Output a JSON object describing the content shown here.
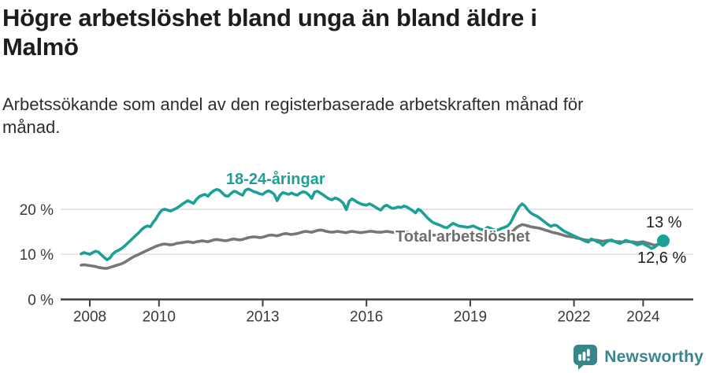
{
  "header": {
    "title_line1": "Högre arbetslöshet bland unga än bland äldre i",
    "title_line2": "Malmö",
    "subtitle_line1": "Arbetssökande som andel av den registerbaserade arbetskraften månad för",
    "subtitle_line2": "månad."
  },
  "chart_data": {
    "type": "line",
    "title": "Högre arbetslöshet bland unga än bland äldre i Malmö",
    "subtitle": "Arbetssökande som andel av den registerbaserade arbetskraften månad för månad.",
    "unit": "%",
    "x_start": 2007.75,
    "x_step_months": 1,
    "xlim": [
      2007.75,
      2025.6
    ],
    "ylim": [
      0,
      27.5
    ],
    "grid": "horizontal",
    "y_ticks": [
      {
        "value": 0,
        "label": "0 %"
      },
      {
        "value": 10,
        "label": "10 %"
      },
      {
        "value": 20,
        "label": "20 %"
      }
    ],
    "x_ticks": [
      {
        "value": 2008,
        "label": "2008"
      },
      {
        "value": 2010,
        "label": "2010"
      },
      {
        "value": 2013,
        "label": "2013"
      },
      {
        "value": 2016,
        "label": "2016"
      },
      {
        "value": 2019,
        "label": "2019"
      },
      {
        "value": 2022,
        "label": "2022"
      },
      {
        "value": 2024,
        "label": "2024"
      }
    ],
    "series": [
      {
        "name": "18-24-åringar",
        "color": "#1ba098",
        "end_dot": true,
        "end_value_label": "13 %",
        "values": [
          10.1,
          10.4,
          10.2,
          10.0,
          10.4,
          10.7,
          10.5,
          9.9,
          9.3,
          8.8,
          9.2,
          10.1,
          10.6,
          10.9,
          11.3,
          11.8,
          12.4,
          13.0,
          13.6,
          14.2,
          14.8,
          15.5,
          16.0,
          16.3,
          16.1,
          17.1,
          17.9,
          19.0,
          19.8,
          20.0,
          19.8,
          19.6,
          19.9,
          20.2,
          20.6,
          21.1,
          21.5,
          21.9,
          21.6,
          21.3,
          22.2,
          22.8,
          23.1,
          23.3,
          22.9,
          23.6,
          24.1,
          24.4,
          24.2,
          23.6,
          23.0,
          22.9,
          23.5,
          24.0,
          23.8,
          23.4,
          23.1,
          24.2,
          24.5,
          24.2,
          23.9,
          23.7,
          23.4,
          23.3,
          23.8,
          24.1,
          23.8,
          23.3,
          21.9,
          23.1,
          23.7,
          23.5,
          23.3,
          23.6,
          23.3,
          23.1,
          23.6,
          23.9,
          23.7,
          23.2,
          22.4,
          23.8,
          24.0,
          23.6,
          23.2,
          22.7,
          22.3,
          22.1,
          22.5,
          22.3,
          21.9,
          21.3,
          19.9,
          21.8,
          22.3,
          21.9,
          21.5,
          21.2,
          21.0,
          20.9,
          21.2,
          20.9,
          20.5,
          20.1,
          19.8,
          20.6,
          20.9,
          20.5,
          20.2,
          20.3,
          20.5,
          20.4,
          20.7,
          20.5,
          20.1,
          19.7,
          19.2,
          20.0,
          19.6,
          18.9,
          18.2,
          17.6,
          17.1,
          16.8,
          16.6,
          16.3,
          16.0,
          15.9,
          16.4,
          16.9,
          16.6,
          16.3,
          16.2,
          16.1,
          16.0,
          16.1,
          16.3,
          16.0,
          15.7,
          15.5,
          15.4,
          16.0,
          15.8,
          15.5,
          15.3,
          15.5,
          15.8,
          16.0,
          16.3,
          17.0,
          18.3,
          19.5,
          20.6,
          21.2,
          20.7,
          19.8,
          19.2,
          18.8,
          18.5,
          18.1,
          17.6,
          17.1,
          16.6,
          16.2,
          16.5,
          16.4,
          15.9,
          15.4,
          15.0,
          14.7,
          14.4,
          14.1,
          13.8,
          13.5,
          13.2,
          12.9,
          12.7,
          13.4,
          13.2,
          12.8,
          12.6,
          12.0,
          12.6,
          13.0,
          13.2,
          12.9,
          12.6,
          12.4,
          12.8,
          13.1,
          12.9,
          12.7,
          12.4,
          12.1,
          12.3,
          12.4,
          12.0,
          11.7,
          11.3,
          11.6,
          12.1,
          12.6,
          13.0
        ]
      },
      {
        "name": "Total arbetslöshet",
        "color": "#767676",
        "end_dot": false,
        "end_value_label": "12,6 %",
        "values": [
          7.6,
          7.7,
          7.6,
          7.5,
          7.4,
          7.3,
          7.1,
          7.0,
          6.9,
          6.9,
          7.1,
          7.3,
          7.5,
          7.7,
          7.9,
          8.2,
          8.6,
          9.0,
          9.4,
          9.7,
          10.0,
          10.3,
          10.6,
          10.9,
          11.2,
          11.5,
          11.8,
          12.0,
          12.2,
          12.3,
          12.2,
          12.1,
          12.2,
          12.4,
          12.5,
          12.6,
          12.7,
          12.8,
          12.7,
          12.6,
          12.8,
          12.9,
          13.0,
          12.9,
          12.8,
          13.0,
          13.2,
          13.3,
          13.2,
          13.1,
          13.0,
          13.1,
          13.3,
          13.4,
          13.3,
          13.2,
          13.3,
          13.5,
          13.7,
          13.8,
          13.9,
          13.8,
          13.7,
          13.8,
          14.0,
          14.2,
          14.3,
          14.2,
          14.1,
          14.3,
          14.5,
          14.6,
          14.5,
          14.4,
          14.5,
          14.6,
          14.8,
          15.0,
          15.1,
          15.0,
          14.9,
          15.1,
          15.3,
          15.4,
          15.3,
          15.1,
          15.0,
          14.9,
          15.0,
          15.1,
          15.0,
          14.9,
          14.8,
          15.0,
          15.1,
          15.0,
          14.9,
          14.8,
          14.9,
          15.0,
          15.1,
          15.1,
          15.0,
          14.9,
          14.9,
          15.0,
          15.1,
          15.0,
          14.9,
          14.8,
          14.8,
          14.8,
          14.9,
          14.9,
          14.8,
          14.7,
          14.6,
          14.7,
          14.8,
          14.7,
          14.5,
          14.4,
          14.3,
          14.2,
          14.3,
          14.3,
          14.2,
          14.0,
          13.9,
          14.0,
          14.1,
          14.0,
          13.9,
          13.8,
          13.7,
          13.7,
          13.8,
          13.8,
          13.7,
          13.6,
          13.5,
          13.6,
          13.7,
          13.7,
          13.6,
          13.6,
          13.7,
          13.8,
          14.0,
          14.5,
          15.3,
          15.9,
          16.3,
          16.6,
          16.5,
          16.3,
          16.1,
          16.0,
          15.9,
          15.8,
          15.6,
          15.4,
          15.2,
          15.0,
          14.8,
          14.7,
          14.5,
          14.3,
          14.1,
          14.0,
          13.9,
          13.8,
          13.6,
          13.5,
          13.3,
          13.2,
          13.1,
          13.2,
          13.2,
          13.1,
          13.0,
          12.9,
          13.0,
          13.1,
          13.0,
          12.9,
          12.8,
          12.8,
          12.7,
          12.9,
          12.8,
          12.8,
          12.7,
          12.6,
          12.7,
          12.8,
          12.6,
          12.4,
          12.2,
          12.0,
          12.2,
          12.4,
          12.6
        ]
      }
    ],
    "end_labels": {
      "young": "13 %",
      "total": "12,6 %"
    }
  },
  "footer": {
    "brand": "Newsworthy",
    "brand_color": "#37868b"
  }
}
